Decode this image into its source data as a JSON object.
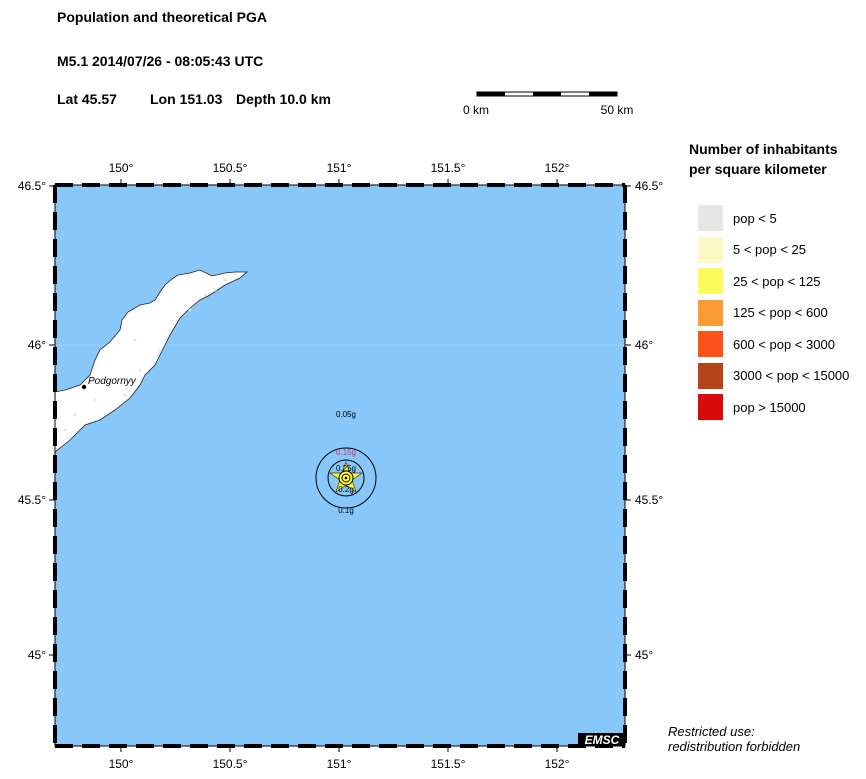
{
  "header": {
    "title": "Population and theoretical PGA",
    "event": "M5.1  2014/07/26 - 08:05:43 UTC",
    "lat_label": "Lat 45.57",
    "lon_label": "Lon 151.03",
    "depth_label": "Depth  10.0 km"
  },
  "scale_bar": {
    "start": "0 km",
    "end": "50 km"
  },
  "map": {
    "lon_ticks": [
      "150°",
      "150.5°",
      "151°",
      "151.5°",
      "152°"
    ],
    "lat_ticks": [
      "46.5°",
      "46°",
      "45.5°",
      "45°"
    ],
    "ocean_color": "#87c7f9",
    "land_color": "#ffffff",
    "city": "Podgornyy",
    "epicenter": {
      "lat": 45.57,
      "lon": 151.03
    },
    "pga_labels": {
      "outer": "0.05g",
      "r015": "0.15g",
      "r025": "0.25g",
      "r02": "0.2g",
      "r01": "0.1g"
    },
    "logo": "EMSC"
  },
  "legend": {
    "title_line1": "Number of inhabitants",
    "title_line2": "per square kilometer",
    "items": [
      {
        "label": "pop < 5",
        "color": "#e6e6e6"
      },
      {
        "label": "5 < pop < 25",
        "color": "#fbf8c6"
      },
      {
        "label": "25 < pop < 125",
        "color": "#fbfb5e"
      },
      {
        "label": "125 < pop < 600",
        "color": "#f99a33"
      },
      {
        "label": "600 < pop < 3000",
        "color": "#fb5219"
      },
      {
        "label": "3000 < pop < 15000",
        "color": "#b54516"
      },
      {
        "label": "pop > 15000",
        "color": "#d90a0a"
      }
    ]
  },
  "notice": {
    "line1": "Restricted use:",
    "line2": "redistribution forbidden"
  }
}
